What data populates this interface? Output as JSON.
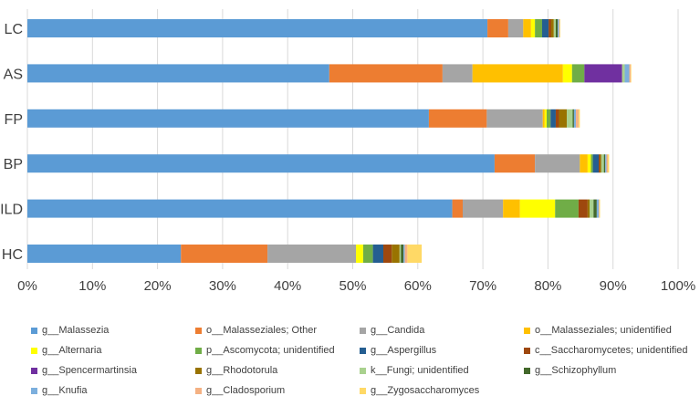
{
  "chart_data": {
    "type": "bar",
    "orientation": "horizontal",
    "stacked": true,
    "title": "",
    "xlabel": "",
    "ylabel": "",
    "xlim": [
      0,
      100
    ],
    "x_ticks": [
      "0%",
      "10%",
      "20%",
      "30%",
      "40%",
      "50%",
      "60%",
      "70%",
      "80%",
      "90%",
      "100%"
    ],
    "grid": true,
    "legend_position": "bottom",
    "categories": [
      "LC",
      "AS",
      "FP",
      "BP",
      "ILD",
      "HC"
    ],
    "series": [
      {
        "name": "g__Malassezia",
        "color": "#5B9BD5",
        "values": [
          70.7,
          46.4,
          61.7,
          71.8,
          65.3,
          23.6
        ]
      },
      {
        "name": "o__Malasseziales; Other",
        "color": "#ED7D31",
        "values": [
          3.2,
          17.4,
          8.9,
          6.2,
          1.6,
          13.3
        ]
      },
      {
        "name": "g__Candida",
        "color": "#A5A5A5",
        "values": [
          2.3,
          4.6,
          8.6,
          6.9,
          6.2,
          13.6
        ]
      },
      {
        "name": "o__Malasseziales; unidentified",
        "color": "#FFC000",
        "values": [
          1.2,
          13.9,
          0.3,
          1.2,
          2.6,
          0.0
        ]
      },
      {
        "name": "g__Alternaria",
        "color": "#FFFF00",
        "values": [
          0.6,
          1.4,
          0.3,
          0.5,
          5.4,
          1.1
        ]
      },
      {
        "name": "p__Ascomycota; unidentified",
        "color": "#70AD47",
        "values": [
          1.1,
          1.9,
          0.6,
          0.3,
          3.6,
          1.5
        ]
      },
      {
        "name": "g__Aspergillus",
        "color": "#255E91",
        "values": [
          1.0,
          0.0,
          0.8,
          0.9,
          0.0,
          1.6
        ]
      },
      {
        "name": "c__Saccharomycetes; unidentified",
        "color": "#9E480E",
        "values": [
          0.4,
          0.0,
          0.5,
          0.2,
          1.4,
          1.3
        ]
      },
      {
        "name": "g__Spencermartinsia",
        "color": "#7030A0",
        "values": [
          0.0,
          5.8,
          0.0,
          0.0,
          0.0,
          0.0
        ]
      },
      {
        "name": "g__Rhodotorula",
        "color": "#997300",
        "values": [
          0.4,
          0.0,
          1.2,
          0.2,
          0.3,
          1.2
        ]
      },
      {
        "name": "k__Fungi; unidentified",
        "color": "#A9D18E",
        "values": [
          0.3,
          0.4,
          0.9,
          0.4,
          0.6,
          0.2
        ]
      },
      {
        "name": "g__Schizophyllum",
        "color": "#43682B",
        "values": [
          0.3,
          0.0,
          0.2,
          0.2,
          0.5,
          0.4
        ]
      },
      {
        "name": "g__Knufia",
        "color": "#7CAFDD",
        "values": [
          0.2,
          0.7,
          0.3,
          0.2,
          0.3,
          0.2
        ]
      },
      {
        "name": "g__Cladosporium",
        "color": "#F4B183",
        "values": [
          0.1,
          0.2,
          0.4,
          0.2,
          0.1,
          0.4
        ]
      },
      {
        "name": "g__Zygosaccharomyces",
        "color": "#FFD966",
        "values": [
          0.1,
          0.1,
          0.2,
          0.2,
          0.1,
          2.2
        ]
      }
    ]
  }
}
